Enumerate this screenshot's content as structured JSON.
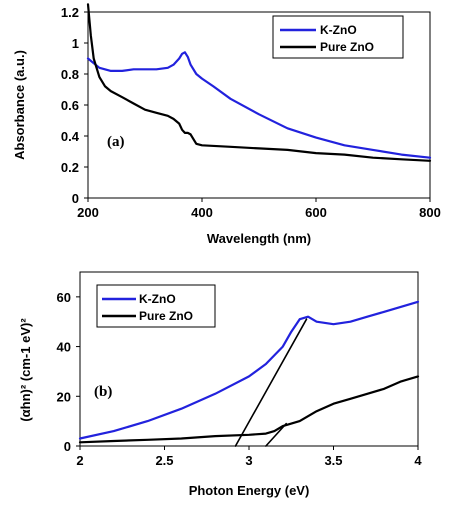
{
  "chart_data": [
    {
      "type": "line",
      "panel_label": "(a)",
      "xlabel": "Wavelength (nm)",
      "ylabel": "Absorbance (a.u.)",
      "xlim": [
        200,
        800
      ],
      "ylim": [
        0,
        1.2
      ],
      "xticks": [
        "200",
        "400",
        "600",
        "800"
      ],
      "yticks": [
        "0",
        "0.2",
        "0.4",
        "0.6",
        "0.8",
        "1",
        "1.2"
      ],
      "legend_position": "top-right",
      "grid": false,
      "series": [
        {
          "name": "K-ZnO",
          "color": "#2222dd",
          "x": [
            200,
            210,
            220,
            240,
            260,
            280,
            300,
            320,
            340,
            350,
            360,
            365,
            370,
            375,
            380,
            390,
            400,
            420,
            450,
            500,
            550,
            600,
            650,
            700,
            750,
            800
          ],
          "y": [
            0.9,
            0.87,
            0.84,
            0.82,
            0.82,
            0.83,
            0.83,
            0.83,
            0.84,
            0.86,
            0.9,
            0.93,
            0.94,
            0.91,
            0.86,
            0.8,
            0.77,
            0.72,
            0.64,
            0.54,
            0.45,
            0.39,
            0.34,
            0.31,
            0.28,
            0.26
          ]
        },
        {
          "name": "Pure ZnO",
          "color": "#000000",
          "x": [
            200,
            205,
            210,
            220,
            230,
            240,
            260,
            280,
            300,
            320,
            340,
            350,
            360,
            365,
            370,
            375,
            380,
            385,
            390,
            400,
            450,
            500,
            550,
            600,
            650,
            700,
            750,
            800
          ],
          "y": [
            1.25,
            1.05,
            0.9,
            0.78,
            0.72,
            0.69,
            0.65,
            0.61,
            0.57,
            0.55,
            0.53,
            0.51,
            0.48,
            0.44,
            0.42,
            0.42,
            0.41,
            0.38,
            0.35,
            0.34,
            0.33,
            0.32,
            0.31,
            0.29,
            0.28,
            0.26,
            0.25,
            0.24
          ]
        }
      ]
    },
    {
      "type": "line",
      "panel_label": "(b)",
      "xlabel": "Photon Energy (eV)",
      "ylabel": "(αhn)² (cm-1 eV)²",
      "xlim": [
        2,
        4
      ],
      "ylim": [
        0,
        70
      ],
      "xticks": [
        "2",
        "2.5",
        "3",
        "3.5",
        "4"
      ],
      "yticks": [
        "0",
        "20",
        "40",
        "60"
      ],
      "legend_position": "top-left",
      "grid": false,
      "series": [
        {
          "name": "K-ZnO",
          "color": "#2222dd",
          "x": [
            2.0,
            2.2,
            2.4,
            2.6,
            2.8,
            3.0,
            3.1,
            3.2,
            3.25,
            3.3,
            3.35,
            3.4,
            3.5,
            3.6,
            3.7,
            3.8,
            3.9,
            4.0
          ],
          "y": [
            3,
            6,
            10,
            15,
            21,
            28,
            33,
            40,
            46,
            51,
            52,
            50,
            49,
            50,
            52,
            54,
            56,
            58
          ]
        },
        {
          "name": "Pure ZnO",
          "color": "#000000",
          "x": [
            2.0,
            2.2,
            2.4,
            2.6,
            2.8,
            3.0,
            3.1,
            3.15,
            3.2,
            3.25,
            3.3,
            3.4,
            3.5,
            3.6,
            3.7,
            3.8,
            3.9,
            4.0
          ],
          "y": [
            1.5,
            2,
            2.5,
            3,
            4,
            4.5,
            5,
            6,
            8,
            9,
            10,
            14,
            17,
            19,
            21,
            23,
            26,
            28
          ]
        },
        {
          "name": "",
          "color": "#000000",
          "x": [
            2.92,
            3.34
          ],
          "y": [
            0,
            51
          ]
        },
        {
          "name": "",
          "color": "#000000",
          "x": [
            3.1,
            3.22
          ],
          "y": [
            0,
            9
          ]
        }
      ]
    }
  ]
}
